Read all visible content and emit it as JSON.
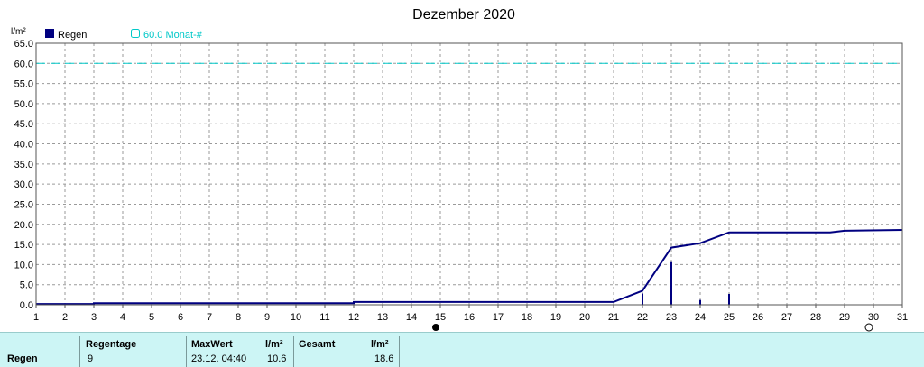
{
  "chart_data": {
    "type": "line",
    "title": "Dezember 2020",
    "ylabel": "l/m²",
    "ylim": [
      0,
      65
    ],
    "xlim": [
      1,
      31
    ],
    "yticks": [
      "0.0",
      "5.0",
      "10.0",
      "15.0",
      "20.0",
      "25.0",
      "30.0",
      "35.0",
      "40.0",
      "45.0",
      "50.0",
      "55.0",
      "60.0",
      "65.0"
    ],
    "xticks": [
      "1",
      "2",
      "3",
      "4",
      "5",
      "6",
      "7",
      "8",
      "9",
      "10",
      "11",
      "12",
      "13",
      "14",
      "15",
      "16",
      "17",
      "18",
      "19",
      "20",
      "21",
      "22",
      "23",
      "24",
      "25",
      "26",
      "27",
      "28",
      "29",
      "30",
      "31"
    ],
    "grid": true,
    "legend": [
      {
        "name": "Regen",
        "color": "#000080"
      },
      {
        "name": "60.0 Monat-#",
        "color": "#00c8c8"
      }
    ],
    "threshold": {
      "value": 60,
      "color": "#00c8c8"
    },
    "cumulative": {
      "name": "Regen",
      "color": "#000080",
      "points": [
        [
          1,
          0.2
        ],
        [
          3,
          0.2
        ],
        [
          3,
          0.4
        ],
        [
          12,
          0.4
        ],
        [
          12,
          0.7
        ],
        [
          21,
          0.7
        ],
        [
          22,
          3.5
        ],
        [
          23,
          14.2
        ],
        [
          24,
          15.3
        ],
        [
          25,
          18.0
        ],
        [
          28.5,
          18.0
        ],
        [
          29,
          18.4
        ],
        [
          31,
          18.6
        ]
      ]
    },
    "daily_bars": [
      {
        "x": 22,
        "value": 2.8
      },
      {
        "x": 23,
        "value": 10.6
      },
      {
        "x": 24,
        "value": 1.2
      },
      {
        "x": 25,
        "value": 2.7
      }
    ],
    "moon_phases": [
      {
        "x": 15,
        "type": "new"
      },
      {
        "x": 30,
        "type": "full"
      }
    ]
  },
  "summary": {
    "row_label": "Regen",
    "regentage_label": "Regentage",
    "regentage_value": "9",
    "maxwert_label": "MaxWert",
    "maxwert_time": "23.12.  04:40",
    "maxwert_unit": "l/m²",
    "maxwert_value": "10.6",
    "gesamt_label": "Gesamt",
    "gesamt_unit": "l/m²",
    "gesamt_value": "18.6"
  }
}
